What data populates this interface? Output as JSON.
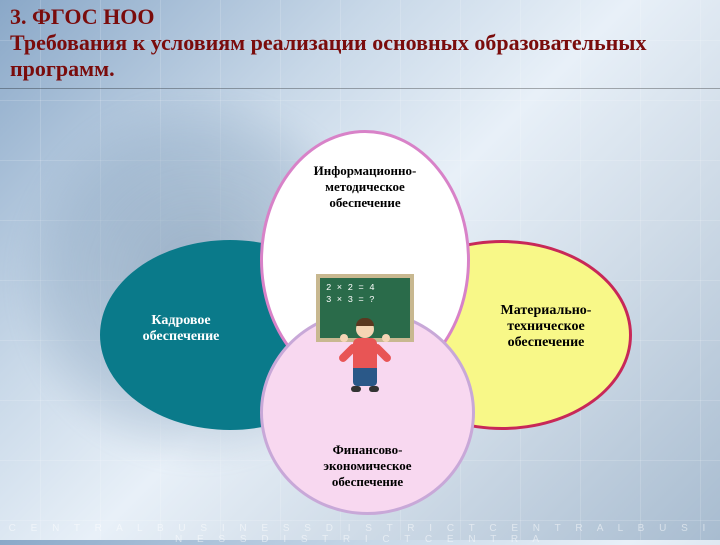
{
  "header": {
    "line1": "3. ФГОС НОО",
    "line2": "Требования к условиям реализации основных образовательных",
    "line3": "программ.",
    "color": "#7a0c0c"
  },
  "venn": {
    "top": {
      "label": "Информационно-\nметодическое\nобеспечение",
      "fill": "#ffffff",
      "stroke": "#d882c8",
      "text_color": "#000000",
      "fontsize": 13
    },
    "left": {
      "label": "Кадровое\nобеспечение",
      "fill": "#0a7a8a",
      "stroke": "#0a7a8a",
      "text_color": "#ffffff",
      "fontsize": 14
    },
    "right": {
      "label": "Материально-\nтехническое\nобеспечение",
      "fill": "#f8f888",
      "stroke": "#c82858",
      "text_color": "#000000",
      "fontsize": 14
    },
    "bottom": {
      "label": "Финансово-\nэкономическое\nобеспечение",
      "fill": "#f8d8f0",
      "stroke": "#c8a8d8",
      "text_color": "#000000",
      "fontsize": 13
    }
  },
  "center_image": {
    "chalkboard_lines": [
      "2 × 2 = 4",
      "3 × 3 = ?"
    ],
    "board_color": "#2a6b4a",
    "board_frame": "#c8b890",
    "kid_shirt": "#e85555",
    "kid_pants": "#2a5888"
  },
  "footer": "C E N T R A L B U S I N E S S D I S T R I C T C E N T R A L B U S I N E S S D I S T R I C T C E N T R A"
}
